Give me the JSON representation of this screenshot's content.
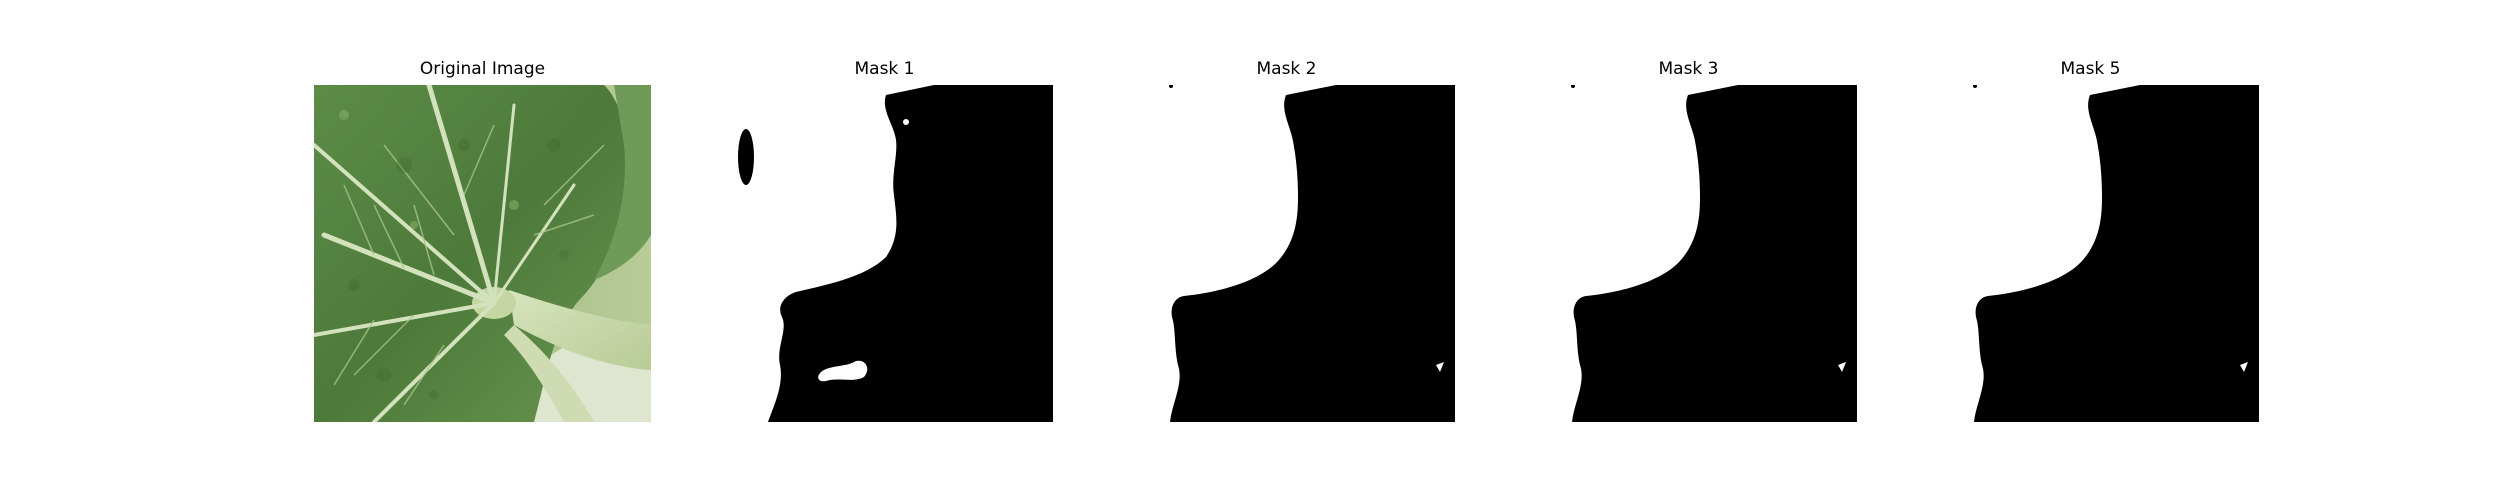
{
  "figure": {
    "panels": [
      {
        "title": "Original Image",
        "image": "leaf-photo"
      },
      {
        "title": "Mask 1",
        "image": "binary-mask"
      },
      {
        "title": "Mask 2",
        "image": "binary-mask"
      },
      {
        "title": "Mask 3",
        "image": "binary-mask"
      },
      {
        "title": "Mask 5",
        "image": "binary-mask"
      }
    ],
    "colors": {
      "background": "#ffffff",
      "mask_foreground": "#000000",
      "mask_background": "#ffffff",
      "leaf_dark": "#4f7a3c",
      "leaf_mid": "#6d9752",
      "leaf_vein": "#d6e3c0",
      "stem": "#c9d7ae"
    }
  }
}
